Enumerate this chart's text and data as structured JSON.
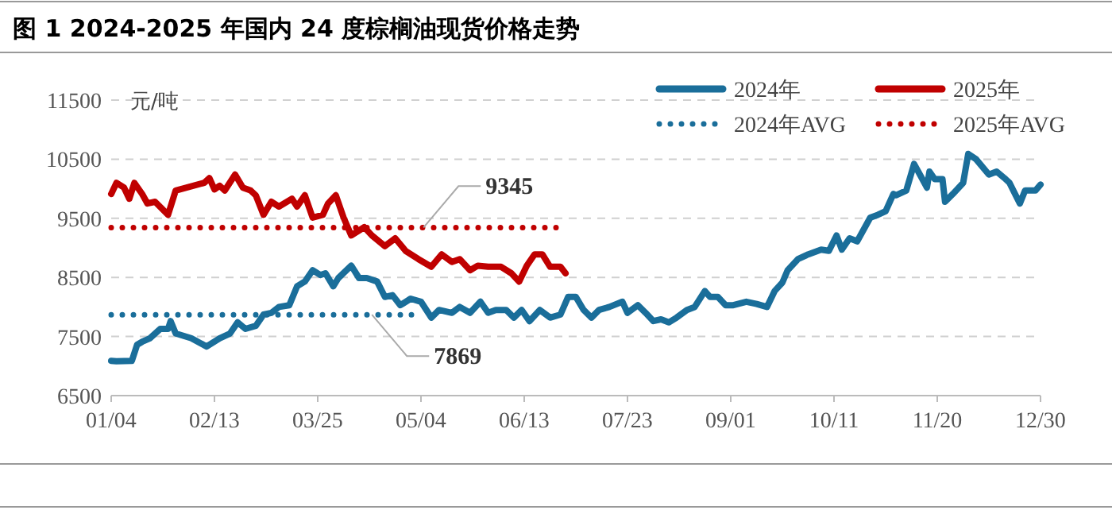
{
  "chart_data": {
    "type": "line",
    "title": "图 1 2024-2025 年国内 24 度棕榈油现货价格走势",
    "ylabel": "元/吨",
    "xlim": [
      "--01-04",
      "--12-30"
    ],
    "xticks": [
      {
        "value": "--01-04",
        "label": "01/04"
      },
      {
        "value": "--02-13",
        "label": "02/13"
      },
      {
        "value": "--03-25",
        "label": "03/25"
      },
      {
        "value": "--05-04",
        "label": "05/04"
      },
      {
        "value": "--06-13",
        "label": "06/13"
      },
      {
        "value": "--07-23",
        "label": "07/23"
      },
      {
        "value": "--09-01",
        "label": "09/01"
      },
      {
        "value": "--10-11",
        "label": "10/11"
      },
      {
        "value": "--11-20",
        "label": "11/20"
      },
      {
        "value": "--12-30",
        "label": "12/30"
      }
    ],
    "ylim": [
      6500,
      11500
    ],
    "yticks": [
      6500,
      7500,
      8500,
      9500,
      10500,
      11500
    ],
    "grid": "y",
    "legend": "top right",
    "series": [
      {
        "name": "2024年",
        "color": "#1a6e9a",
        "line_style": "solid",
        "x": [
          "--01-04",
          "--01-06",
          "--01-12",
          "--01-14",
          "--01-16",
          "--01-19",
          "--01-23",
          "--01-26",
          "--01-27",
          "--01-29",
          "--02-04",
          "--02-10",
          "--02-15",
          "--02-19",
          "--02-22",
          "--02-25",
          "--03-01",
          "--03-04",
          "--03-07",
          "--03-10",
          "--03-14",
          "--03-17",
          "--03-20",
          "--03-23",
          "--03-26",
          "--03-28",
          "--03-31",
          "--04-02",
          "--04-07",
          "--04-10",
          "--04-13",
          "--04-17",
          "--04-20",
          "--04-23",
          "--04-26",
          "--04-30",
          "--05-04",
          "--05-08",
          "--05-11",
          "--05-16",
          "--05-19",
          "--05-23",
          "--05-27",
          "--05-30",
          "--06-02",
          "--06-06",
          "--06-09",
          "--06-12",
          "--06-15",
          "--06-19",
          "--06-23",
          "--06-27",
          "--06-30",
          "--07-03",
          "--07-06",
          "--07-09",
          "--07-12",
          "--07-16",
          "--07-21",
          "--07-23",
          "--07-27",
          "--07-30",
          "--08-02",
          "--08-05",
          "--08-08",
          "--08-11",
          "--08-15",
          "--08-18",
          "--08-22",
          "--08-24",
          "--08-27",
          "--08-30",
          "--09-02",
          "--09-07",
          "--09-11",
          "--09-15",
          "--09-18",
          "--09-21",
          "--09-23",
          "--09-27",
          "--10-01",
          "--10-06",
          "--10-09",
          "--10-12",
          "--10-14",
          "--10-17",
          "--10-20",
          "--10-25",
          "--10-28",
          "--10-31",
          "--11-03",
          "--11-04",
          "--11-08",
          "--11-11",
          "--11-14",
          "--11-16",
          "--11-17",
          "--11-19",
          "--11-22",
          "--11-23",
          "--11-26",
          "--11-30",
          "--12-02",
          "--12-05",
          "--12-10",
          "--12-13",
          "--12-16",
          "--12-18",
          "--12-22",
          "--12-24",
          "--12-28",
          "--12-30"
        ],
        "values": [
          7090,
          7080,
          7090,
          7360,
          7410,
          7470,
          7630,
          7630,
          7760,
          7550,
          7470,
          7330,
          7470,
          7550,
          7740,
          7630,
          7680,
          7870,
          7900,
          8000,
          8030,
          8350,
          8430,
          8620,
          8540,
          8570,
          8350,
          8490,
          8700,
          8490,
          8490,
          8430,
          8170,
          8200,
          8030,
          8140,
          8090,
          7820,
          7950,
          7900,
          8000,
          7900,
          8090,
          7900,
          7950,
          7950,
          7820,
          7950,
          7760,
          7950,
          7820,
          7870,
          8170,
          8170,
          7950,
          7820,
          7950,
          8000,
          8090,
          7900,
          8030,
          7900,
          7760,
          7790,
          7740,
          7820,
          7950,
          8000,
          8270,
          8170,
          8170,
          8030,
          8030,
          8090,
          8050,
          8000,
          8270,
          8410,
          8620,
          8810,
          8890,
          8970,
          8950,
          9210,
          8970,
          9160,
          9110,
          9510,
          9560,
          9620,
          9910,
          9890,
          9970,
          10420,
          10180,
          10020,
          10290,
          10160,
          10160,
          9780,
          9910,
          10100,
          10590,
          10500,
          10240,
          10290,
          10180,
          10100,
          9750,
          9970,
          9970,
          10070
        ]
      },
      {
        "name": "2025年",
        "color": "#c00000",
        "line_style": "solid",
        "x": [
          "--01-04",
          "--01-06",
          "--01-09",
          "--01-11",
          "--01-13",
          "--01-16",
          "--01-18",
          "--01-21",
          "--01-26",
          "--01-29",
          "--02-09",
          "--02-11",
          "--02-13",
          "--02-15",
          "--02-17",
          "--02-21",
          "--02-24",
          "--02-27",
          "--03-01",
          "--03-04",
          "--03-07",
          "--03-10",
          "--03-15",
          "--03-17",
          "--03-20",
          "--03-23",
          "--03-27",
          "--03-29",
          "--04-01",
          "--04-04",
          "--04-07",
          "--04-12",
          "--04-15",
          "--04-20",
          "--04-24",
          "--04-28",
          "--05-03",
          "--05-08",
          "--05-12",
          "--05-16",
          "--05-19",
          "--05-23",
          "--05-26",
          "--05-30",
          "--06-04",
          "--06-08",
          "--06-11",
          "--06-14",
          "--06-17",
          "--06-20",
          "--06-23",
          "--06-27",
          "--06-29"
        ],
        "values": [
          9910,
          10100,
          10020,
          9830,
          10100,
          9910,
          9750,
          9780,
          9560,
          9970,
          10100,
          10180,
          9990,
          10050,
          9970,
          10240,
          10020,
          9970,
          9890,
          9560,
          9780,
          9700,
          9830,
          9700,
          9890,
          9510,
          9560,
          9750,
          9890,
          9510,
          9210,
          9350,
          9210,
          9030,
          9160,
          8950,
          8810,
          8680,
          8890,
          8760,
          8810,
          8620,
          8700,
          8680,
          8680,
          8570,
          8430,
          8700,
          8890,
          8890,
          8680,
          8680,
          8570
        ]
      },
      {
        "name": "2024年AVG",
        "color": "#1a6e9a",
        "line_style": "dotted",
        "x": [
          "--01-04",
          "--05-04"
        ],
        "values": [
          7869,
          7869
        ]
      },
      {
        "name": "2025年AVG",
        "color": "#c00000",
        "line_style": "dotted",
        "x": [
          "--01-04",
          "--06-27"
        ],
        "values": [
          9345,
          9345
        ]
      }
    ],
    "annotations": [
      {
        "text": "9345",
        "x": "--05-05",
        "y": 9345
      },
      {
        "text": "7869",
        "x": "--04-15",
        "y": 7869
      }
    ]
  }
}
